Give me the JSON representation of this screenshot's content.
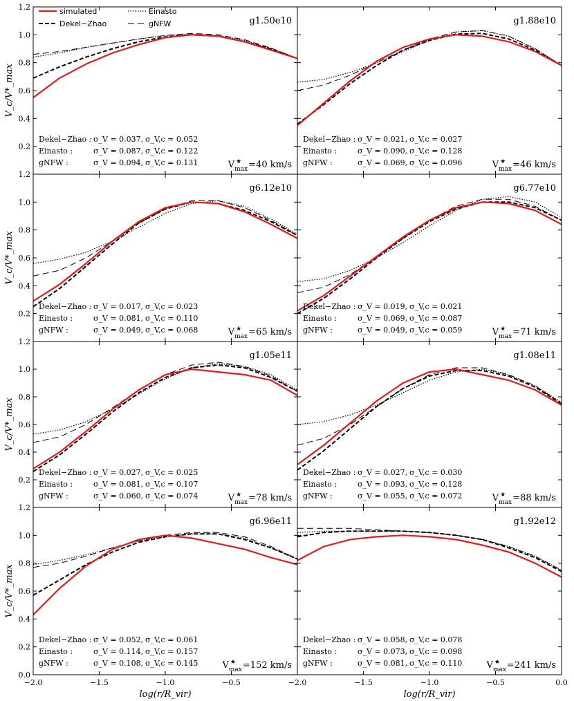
{
  "chart_data": {
    "type": "line",
    "xlabel": "log(r/R_vir)",
    "ylabel": "V_c/V*_max",
    "xlim": [
      -2.0,
      0.0
    ],
    "ylim": [
      0.0,
      1.2
    ],
    "x_ticks": [
      "−2.0",
      "−1.5",
      "−1.0",
      "−0.5",
      "−2.0",
      "−1.5",
      "−1.0",
      "−0.5",
      "0.0"
    ],
    "y_ticks": [
      "0.0",
      "0.2",
      "0.4",
      "0.6",
      "0.8",
      "1.0",
      "1.2"
    ],
    "legend": {
      "location": "top-left",
      "entries": [
        {
          "key": "simulated",
          "label": "simulated",
          "color": "#e41a1c",
          "style": "solid-thick"
        },
        {
          "key": "dekel",
          "label": "Dekel−Zhao",
          "color": "#000000",
          "style": "dashed-thick"
        },
        {
          "key": "einasto",
          "label": "Einasto",
          "color": "#000000",
          "style": "dotted"
        },
        {
          "key": "gnfw",
          "label": "gNFW",
          "color": "#000000",
          "style": "dashed-thin"
        }
      ]
    },
    "panels": [
      {
        "name": "g1.50e10",
        "vmax_value": "=40 km/s",
        "stats": [
          {
            "label": "Dekel−Zhao :",
            "sv": "σ_V = 0.037,",
            "svc": "σ_V,c = 0.052"
          },
          {
            "label": "Einasto :",
            "sv": "σ_V = 0.087,",
            "svc": "σ_V,c = 0.122"
          },
          {
            "label": "gNFW :",
            "sv": "σ_V = 0.094,",
            "svc": "σ_V,c = 0.131"
          }
        ],
        "series": {
          "x": [
            -2.0,
            -1.8,
            -1.6,
            -1.4,
            -1.2,
            -1.0,
            -0.8,
            -0.6,
            -0.4,
            -0.2,
            0.0
          ],
          "simulated": [
            0.55,
            0.69,
            0.79,
            0.87,
            0.93,
            0.98,
            1.0,
            0.99,
            0.95,
            0.89,
            0.83
          ],
          "dekel": [
            0.69,
            0.77,
            0.84,
            0.9,
            0.95,
            0.985,
            1.0,
            0.99,
            0.95,
            0.9,
            0.83
          ],
          "einasto": [
            0.84,
            0.87,
            0.91,
            0.94,
            0.97,
            0.995,
            1.005,
            0.995,
            0.96,
            0.9,
            0.83
          ],
          "gnfw": [
            0.86,
            0.88,
            0.91,
            0.94,
            0.97,
            0.995,
            1.01,
            1.0,
            0.965,
            0.905,
            0.83
          ]
        }
      },
      {
        "name": "g1.88e10",
        "vmax_value": "=46 km/s",
        "stats": [
          {
            "label": "Dekel−Zhao :",
            "sv": "σ_V = 0.021,",
            "svc": "σ_V,c = 0.027"
          },
          {
            "label": "Einasto :",
            "sv": "σ_V = 0.090,",
            "svc": "σ_V,c = 0.128"
          },
          {
            "label": "gNFW :",
            "sv": "σ_V = 0.069,",
            "svc": "σ_V,c = 0.096"
          }
        ],
        "series": {
          "x": [
            -2.0,
            -1.8,
            -1.6,
            -1.4,
            -1.2,
            -1.0,
            -0.8,
            -0.6,
            -0.4,
            -0.2,
            0.0
          ],
          "simulated": [
            0.35,
            0.51,
            0.67,
            0.81,
            0.91,
            0.97,
            1.0,
            0.99,
            0.95,
            0.88,
            0.78
          ],
          "dekel": [
            0.36,
            0.5,
            0.65,
            0.78,
            0.89,
            0.96,
            1.005,
            1.01,
            0.97,
            0.89,
            0.78
          ],
          "einasto": [
            0.66,
            0.68,
            0.73,
            0.8,
            0.88,
            0.96,
            1.02,
            1.03,
            0.99,
            0.9,
            0.78
          ],
          "gnfw": [
            0.6,
            0.64,
            0.71,
            0.8,
            0.89,
            0.97,
            1.02,
            1.03,
            0.99,
            0.9,
            0.78
          ]
        }
      },
      {
        "name": "g6.12e10",
        "vmax_value": "=65 km/s",
        "stats": [
          {
            "label": "Dekel−Zhao :",
            "sv": "σ_V = 0.017,",
            "svc": "σ_V,c = 0.023"
          },
          {
            "label": "Einasto :",
            "sv": "σ_V = 0.081,",
            "svc": "σ_V,c = 0.110"
          },
          {
            "label": "gNFW :",
            "sv": "σ_V = 0.049,",
            "svc": "σ_V,c = 0.068"
          }
        ],
        "series": {
          "x": [
            -2.0,
            -1.8,
            -1.6,
            -1.4,
            -1.2,
            -1.0,
            -0.8,
            -0.6,
            -0.4,
            -0.2,
            0.0
          ],
          "simulated": [
            0.29,
            0.41,
            0.56,
            0.72,
            0.86,
            0.96,
            1.0,
            0.99,
            0.93,
            0.84,
            0.74
          ],
          "dekel": [
            0.25,
            0.38,
            0.54,
            0.7,
            0.85,
            0.95,
            1.0,
            0.99,
            0.94,
            0.86,
            0.76
          ],
          "einasto": [
            0.56,
            0.59,
            0.64,
            0.72,
            0.82,
            0.92,
            0.99,
            1.01,
            0.97,
            0.88,
            0.77
          ],
          "gnfw": [
            0.47,
            0.51,
            0.6,
            0.72,
            0.85,
            0.95,
            1.01,
            1.01,
            0.96,
            0.87,
            0.76
          ]
        }
      },
      {
        "name": "g6.77e10",
        "vmax_value": "=71 km/s",
        "stats": [
          {
            "label": "Dekel−Zhao :",
            "sv": "σ_V = 0.019,",
            "svc": "σ_V,c = 0.021"
          },
          {
            "label": "Einasto :",
            "sv": "σ_V = 0.069,",
            "svc": "σ_V,c = 0.087"
          },
          {
            "label": "gNFW :",
            "sv": "σ_V = 0.049,",
            "svc": "σ_V,c = 0.059"
          }
        ],
        "series": {
          "x": [
            -2.0,
            -1.8,
            -1.6,
            -1.4,
            -1.2,
            -1.0,
            -0.8,
            -0.6,
            -0.4,
            -0.2,
            0.0
          ],
          "simulated": [
            0.22,
            0.33,
            0.47,
            0.61,
            0.75,
            0.87,
            0.96,
            1.0,
            0.99,
            0.94,
            0.84
          ],
          "dekel": [
            0.2,
            0.31,
            0.45,
            0.6,
            0.74,
            0.86,
            0.95,
            1.0,
            1.0,
            0.96,
            0.87
          ],
          "einasto": [
            0.43,
            0.45,
            0.51,
            0.6,
            0.71,
            0.83,
            0.94,
            1.02,
            1.04,
            1.0,
            0.89
          ],
          "gnfw": [
            0.35,
            0.39,
            0.48,
            0.61,
            0.74,
            0.87,
            0.97,
            1.02,
            1.02,
            0.97,
            0.87
          ]
        }
      },
      {
        "name": "g1.05e11",
        "vmax_value": "=78 km/s",
        "stats": [
          {
            "label": "Dekel−Zhao :",
            "sv": "σ_V = 0.027,",
            "svc": "σ_V,c = 0.025"
          },
          {
            "label": "Einasto :",
            "sv": "σ_V = 0.081,",
            "svc": "σ_V,c = 0.107"
          },
          {
            "label": "gNFW :",
            "sv": "σ_V = 0.060,",
            "svc": "σ_V,c = 0.074"
          }
        ],
        "series": {
          "x": [
            -2.0,
            -1.8,
            -1.6,
            -1.4,
            -1.2,
            -1.0,
            -0.8,
            -0.6,
            -0.4,
            -0.2,
            0.0
          ],
          "simulated": [
            0.28,
            0.4,
            0.55,
            0.71,
            0.85,
            0.96,
            1.0,
            0.98,
            0.96,
            0.92,
            0.81
          ],
          "dekel": [
            0.26,
            0.38,
            0.53,
            0.69,
            0.83,
            0.94,
            1.01,
            1.03,
            1.01,
            0.94,
            0.84
          ],
          "einasto": [
            0.53,
            0.56,
            0.62,
            0.71,
            0.82,
            0.93,
            1.01,
            1.04,
            1.02,
            0.96,
            0.85
          ],
          "gnfw": [
            0.47,
            0.51,
            0.6,
            0.72,
            0.85,
            0.96,
            1.03,
            1.05,
            1.02,
            0.95,
            0.84
          ]
        }
      },
      {
        "name": "g1.08e11",
        "vmax_value": "=88 km/s",
        "stats": [
          {
            "label": "Dekel−Zhao :",
            "sv": "σ_V = 0.027,",
            "svc": "σ_V,c = 0.030"
          },
          {
            "label": "Einasto :",
            "sv": "σ_V = 0.093,",
            "svc": "σ_V,c = 0.128"
          },
          {
            "label": "gNFW :",
            "sv": "σ_V = 0.055,",
            "svc": "σ_V,c = 0.072"
          }
        ],
        "series": {
          "x": [
            -2.0,
            -1.8,
            -1.6,
            -1.4,
            -1.2,
            -1.0,
            -0.8,
            -0.6,
            -0.4,
            -0.2,
            0.0
          ],
          "simulated": [
            0.31,
            0.45,
            0.61,
            0.77,
            0.9,
            0.98,
            1.0,
            0.96,
            0.92,
            0.85,
            0.74
          ],
          "dekel": [
            0.27,
            0.41,
            0.57,
            0.73,
            0.86,
            0.95,
            0.99,
            0.99,
            0.95,
            0.87,
            0.75
          ],
          "einasto": [
            0.6,
            0.62,
            0.67,
            0.74,
            0.83,
            0.92,
            0.98,
            1.0,
            0.96,
            0.88,
            0.76
          ],
          "gnfw": [
            0.45,
            0.5,
            0.6,
            0.73,
            0.86,
            0.96,
            1.01,
            1.01,
            0.96,
            0.88,
            0.75
          ]
        }
      },
      {
        "name": "g6.96e11",
        "vmax_value": "=152 km/s",
        "stats": [
          {
            "label": "Dekel−Zhao :",
            "sv": "σ_V = 0.052,",
            "svc": "σ_V,c = 0.061"
          },
          {
            "label": "Einasto :",
            "sv": "σ_V = 0.114,",
            "svc": "σ_V,c = 0.157"
          },
          {
            "label": "gNFW :",
            "sv": "σ_V = 0.108,",
            "svc": "σ_V,c = 0.145"
          }
        ],
        "series": {
          "x": [
            -2.0,
            -1.8,
            -1.6,
            -1.4,
            -1.2,
            -1.0,
            -0.8,
            -0.6,
            -0.4,
            -0.2,
            0.0
          ],
          "simulated": [
            0.43,
            0.62,
            0.78,
            0.9,
            0.97,
            1.0,
            0.98,
            0.94,
            0.9,
            0.84,
            0.79
          ],
          "dekel": [
            0.57,
            0.68,
            0.79,
            0.88,
            0.95,
            0.99,
            1.01,
            1.01,
            0.97,
            0.91,
            0.83
          ],
          "einasto": [
            0.79,
            0.82,
            0.86,
            0.91,
            0.96,
            0.99,
            1.01,
            1.01,
            0.98,
            0.91,
            0.83
          ],
          "gnfw": [
            0.77,
            0.8,
            0.85,
            0.91,
            0.96,
            1.0,
            1.02,
            1.02,
            0.99,
            0.92,
            0.83
          ]
        }
      },
      {
        "name": "g1.92e12",
        "vmax_value": "=241 km/s",
        "stats": [
          {
            "label": "Dekel−Zhao :",
            "sv": "σ_V = 0.058,",
            "svc": "σ_V,c = 0.078"
          },
          {
            "label": "Einasto :",
            "sv": "σ_V = 0.073,",
            "svc": "σ_V,c = 0.098"
          },
          {
            "label": "gNFW :",
            "sv": "σ_V = 0.081,",
            "svc": "σ_V,c = 0.110"
          }
        ],
        "series": {
          "x": [
            -2.0,
            -1.8,
            -1.6,
            -1.4,
            -1.2,
            -1.0,
            -0.8,
            -0.6,
            -0.4,
            -0.2,
            0.0
          ],
          "simulated": [
            0.82,
            0.92,
            0.97,
            0.99,
            1.0,
            0.99,
            0.97,
            0.93,
            0.88,
            0.8,
            0.7
          ],
          "dekel": [
            0.99,
            1.02,
            1.03,
            1.03,
            1.03,
            1.02,
            1.0,
            0.97,
            0.91,
            0.84,
            0.74
          ],
          "einasto": [
            1.02,
            1.03,
            1.03,
            1.03,
            1.03,
            1.02,
            1.0,
            0.97,
            0.92,
            0.85,
            0.75
          ],
          "gnfw": [
            1.05,
            1.05,
            1.05,
            1.04,
            1.03,
            1.02,
            1.0,
            0.97,
            0.92,
            0.85,
            0.75
          ]
        }
      }
    ]
  }
}
